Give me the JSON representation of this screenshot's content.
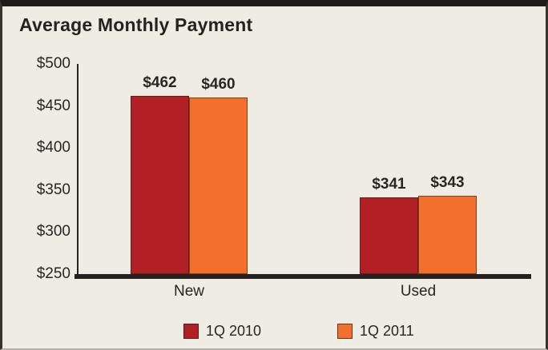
{
  "title": "Average Monthly Payment",
  "colors": {
    "series_2010": "#B22025",
    "series_2011": "#F2702C",
    "background": "#EFECE3",
    "text": "#2A2523",
    "axis": "#25211E",
    "frame_border": "#1E1A17"
  },
  "chart_data": {
    "type": "bar",
    "title": "Average Monthly Payment",
    "categories": [
      "New",
      "Used"
    ],
    "series": [
      {
        "name": "1Q 2010",
        "color": "#B22025",
        "values": [
          462,
          341
        ],
        "labels": [
          "$462",
          "$341"
        ]
      },
      {
        "name": "1Q 2011",
        "color": "#F2702C",
        "values": [
          460,
          343
        ],
        "labels": [
          "$460",
          "$343"
        ]
      }
    ],
    "xlabel": "",
    "ylabel": "",
    "ylim": [
      250,
      500
    ],
    "y_ticks": [
      "$500",
      "$450",
      "$400",
      "$350",
      "$300",
      "$250"
    ],
    "grid": false,
    "legend_position": "bottom"
  },
  "legend": {
    "items": [
      {
        "label": "1Q 2010",
        "color": "#B22025"
      },
      {
        "label": "1Q 2011",
        "color": "#F2702C"
      }
    ]
  }
}
